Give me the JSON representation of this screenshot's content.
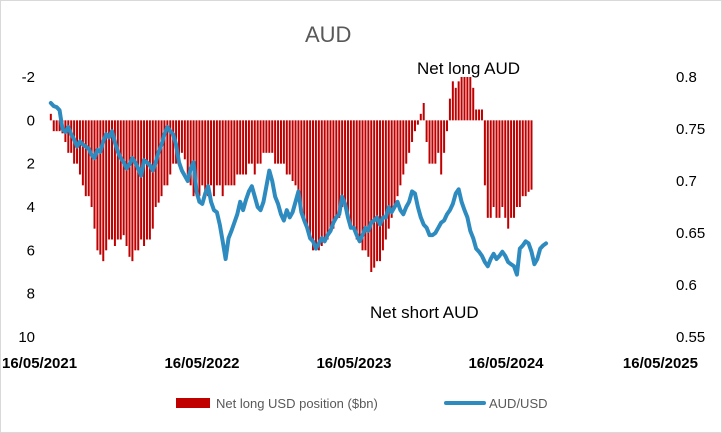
{
  "chart_data": {
    "type": "bar+line",
    "title": "AUD",
    "annotations": [
      "Net long AUD",
      "Net short AUD"
    ],
    "x_ticks": [
      "16/05/2021",
      "16/05/2022",
      "16/05/2023",
      "16/05/2024",
      "16/05/2025"
    ],
    "y_left": {
      "ticks": [
        "-2",
        "0",
        "2",
        "4",
        "6",
        "8",
        "10"
      ],
      "range": [
        10,
        -2
      ],
      "inverted": true
    },
    "y_right": {
      "ticks": [
        "0.55",
        "0.6",
        "0.65",
        "0.7",
        "0.75",
        "0.8"
      ],
      "range": [
        0.55,
        0.8
      ]
    },
    "grid": false,
    "legend": {
      "position": "bottom"
    },
    "colors": {
      "bars": "#c00000",
      "line": "#2e8bc0",
      "text": "#595959"
    },
    "series": [
      {
        "name": "Net long USD position ($bn)",
        "type": "bar",
        "axis": "left",
        "start": "2021-05-18",
        "interval_days": 7,
        "values": [
          -0.3,
          0.5,
          0.5,
          0.5,
          0.6,
          1.0,
          1.5,
          1.5,
          2.0,
          2.0,
          2.5,
          3.0,
          3.5,
          3.5,
          4.0,
          5.0,
          6.0,
          6.2,
          6.5,
          6.0,
          5.5,
          5.5,
          5.8,
          5.5,
          5.5,
          5.3,
          5.8,
          6.3,
          6.5,
          6.0,
          6.0,
          5.5,
          5.8,
          5.5,
          5.5,
          5.0,
          4.0,
          3.8,
          3.5,
          3.0,
          3.0,
          2.5,
          2.0,
          2.0,
          2.0,
          1.5,
          1.8,
          2.5,
          3.0,
          3.5,
          3.5,
          3.5,
          3.0,
          3.5,
          3.5,
          3.0,
          3.5,
          3.0,
          3.0,
          3.5,
          3.0,
          3.0,
          3.0,
          3.0,
          2.5,
          2.5,
          2.5,
          2.5,
          2.0,
          2.0,
          2.5,
          2.0,
          2.0,
          1.5,
          1.5,
          1.5,
          1.5,
          2.0,
          2.0,
          2.0,
          2.0,
          2.5,
          2.5,
          2.8,
          3.0,
          3.5,
          4.0,
          4.5,
          5.0,
          5.5,
          6.0,
          6.0,
          6.0,
          5.8,
          5.5,
          5.5,
          5.0,
          5.0,
          4.5,
          4.5,
          4.0,
          4.0,
          4.5,
          5.0,
          5.0,
          5.5,
          5.5,
          6.0,
          6.0,
          6.3,
          7.0,
          6.8,
          6.5,
          6.5,
          6.0,
          5.5,
          5.0,
          4.5,
          4.0,
          3.5,
          3.0,
          2.5,
          2.0,
          1.5,
          1.0,
          0.5,
          0.2,
          -0.3,
          -0.8,
          1.0,
          2.0,
          2.0,
          2.0,
          1.5,
          2.5,
          1.5,
          0.5,
          -1.0,
          -1.8,
          -1.5,
          -1.8,
          -2.0,
          -2.0,
          -2.0,
          -2.0,
          -1.5,
          -0.5,
          -0.5,
          -0.5,
          3.0,
          4.5,
          4.5,
          4.0,
          4.5,
          4.5,
          4.0,
          4.5,
          5.0,
          4.5,
          4.5,
          4.0,
          4.0,
          3.5,
          3.5,
          3.3,
          3.2
        ]
      },
      {
        "name": "AUD/USD",
        "type": "line",
        "axis": "right",
        "start": "2021-05-18",
        "interval_days": 7,
        "values": [
          0.775,
          0.772,
          0.771,
          0.768,
          0.75,
          0.747,
          0.752,
          0.745,
          0.74,
          0.733,
          0.738,
          0.735,
          0.733,
          0.731,
          0.725,
          0.722,
          0.73,
          0.728,
          0.738,
          0.745,
          0.742,
          0.748,
          0.737,
          0.728,
          0.722,
          0.718,
          0.712,
          0.716,
          0.722,
          0.718,
          0.712,
          0.705,
          0.72,
          0.718,
          0.715,
          0.71,
          0.718,
          0.728,
          0.735,
          0.745,
          0.752,
          0.748,
          0.745,
          0.735,
          0.718,
          0.71,
          0.705,
          0.7,
          0.712,
          0.718,
          0.69,
          0.68,
          0.678,
          0.688,
          0.695,
          0.68,
          0.672,
          0.67,
          0.658,
          0.642,
          0.625,
          0.645,
          0.652,
          0.66,
          0.668,
          0.68,
          0.672,
          0.682,
          0.69,
          0.695,
          0.685,
          0.675,
          0.672,
          0.68,
          0.695,
          0.71,
          0.7,
          0.685,
          0.678,
          0.668,
          0.662,
          0.672,
          0.665,
          0.67,
          0.68,
          0.69,
          0.67,
          0.662,
          0.655,
          0.645,
          0.642,
          0.635,
          0.64,
          0.645,
          0.642,
          0.648,
          0.652,
          0.66,
          0.665,
          0.668,
          0.685,
          0.678,
          0.665,
          0.655,
          0.655,
          0.648,
          0.642,
          0.648,
          0.655,
          0.652,
          0.66,
          0.662,
          0.665,
          0.658,
          0.665,
          0.665,
          0.675,
          0.67,
          0.675,
          0.68,
          0.672,
          0.668,
          0.675,
          0.68,
          0.69,
          0.688,
          0.675,
          0.665,
          0.658,
          0.655,
          0.648,
          0.648,
          0.65,
          0.655,
          0.66,
          0.662,
          0.668,
          0.672,
          0.678,
          0.688,
          0.692,
          0.68,
          0.672,
          0.665,
          0.652,
          0.645,
          0.635,
          0.632,
          0.628,
          0.622,
          0.618,
          0.625,
          0.63,
          0.625,
          0.628,
          0.632,
          0.628,
          0.622,
          0.62,
          0.618,
          0.61,
          0.635,
          0.638,
          0.642,
          0.64,
          0.632,
          0.62,
          0.625,
          0.635,
          0.638,
          0.64
        ]
      }
    ]
  }
}
